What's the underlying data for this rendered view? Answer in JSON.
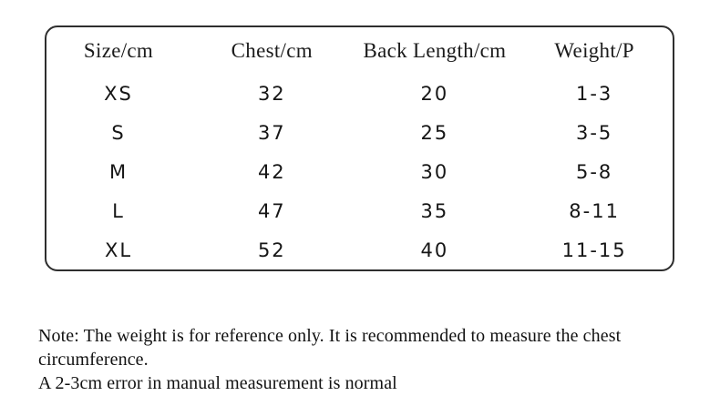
{
  "size_chart": {
    "headers": [
      "Size/cm",
      "Chest/cm",
      "Back Length/cm",
      "Weight/P"
    ],
    "rows": [
      [
        "XS",
        "32",
        "20",
        "1-3"
      ],
      [
        "S",
        "37",
        "25",
        "3-5"
      ],
      [
        "M",
        "42",
        "30",
        "5-8"
      ],
      [
        "L",
        "47",
        "35",
        "8-11"
      ],
      [
        "XL",
        "52",
        "40",
        "11-15"
      ]
    ]
  },
  "note": {
    "line1": "Note: The weight is for reference only. It is recommended to measure the chest circumference.",
    "line2": "A 2-3cm error in manual measurement is normal"
  },
  "colors": {
    "background": "#ffffff",
    "border": "#2e2e2e",
    "text": "#1b1b1b"
  }
}
